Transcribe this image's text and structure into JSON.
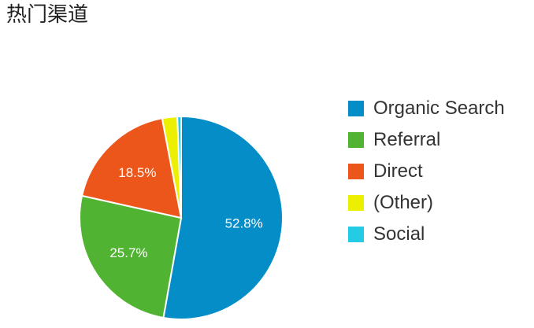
{
  "title": "热门渠道",
  "chart_data": {
    "type": "pie",
    "title": "热门渠道",
    "legend_position": "right",
    "slices": [
      {
        "label": "Organic Search",
        "value": 52.8,
        "color": "#058dc7",
        "value_label": "52.8%"
      },
      {
        "label": "Referral",
        "value": 25.7,
        "color": "#50b432",
        "value_label": "25.7%"
      },
      {
        "label": "Direct",
        "value": 18.5,
        "color": "#ed561b",
        "value_label": "18.5%"
      },
      {
        "label": "(Other)",
        "value": 2.4,
        "color": "#edef00",
        "value_label": ""
      },
      {
        "label": "Social",
        "value": 0.6,
        "color": "#24cbe5",
        "value_label": ""
      }
    ]
  }
}
